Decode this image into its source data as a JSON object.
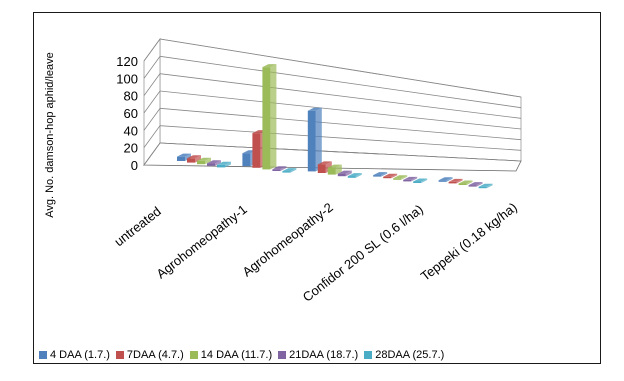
{
  "page_title_fragment": "",
  "chart_data": {
    "type": "bar",
    "title": "",
    "xlabel": "",
    "ylabel": "Avg. No. damson-hop aphid/leave",
    "ylim": [
      0,
      120
    ],
    "yticks": [
      "0",
      "20",
      "40",
      "60",
      "80",
      "100",
      "120"
    ],
    "grid": true,
    "legend_position": "bottom",
    "categories": [
      "untreated",
      "Agrohomeopathy-1",
      "Agrohomeopathy-2",
      "Confidor 200 SL (0.6 l/ha)",
      "Teppeki (0.18 kg/ha)"
    ],
    "series": [
      {
        "name": "4 DAA (1.7.)",
        "color": "#4F81BD",
        "values": [
          5,
          15,
          70,
          1,
          1
        ]
      },
      {
        "name": "7DAA (4.7.)",
        "color": "#C0504D",
        "values": [
          5,
          40,
          10,
          1,
          1
        ]
      },
      {
        "name": "14 DAA (11.7.)",
        "color": "#9BBB59",
        "values": [
          4,
          118,
          8,
          1,
          1
        ]
      },
      {
        "name": "21DAA (18.7.)",
        "color": "#8064A2",
        "values": [
          3,
          2,
          3,
          0.5,
          0.5
        ]
      },
      {
        "name": "28DAA (25.7.)",
        "color": "#4BACC6",
        "values": [
          3,
          1,
          2,
          0.5,
          0.5
        ]
      }
    ]
  }
}
